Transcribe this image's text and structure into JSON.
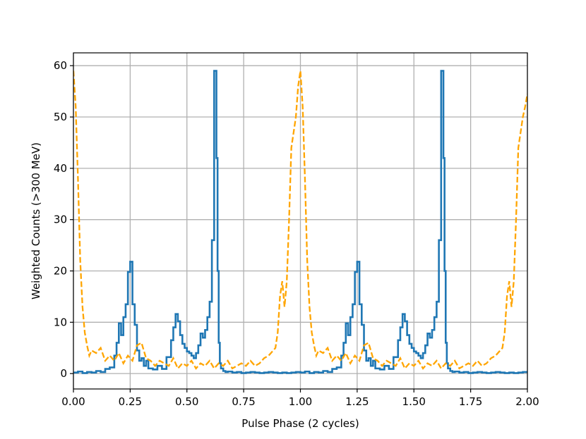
{
  "chart_data": {
    "type": "line",
    "title": "",
    "xlabel": "Pulse Phase (2 cycles)",
    "ylabel": "Weighted Counts (>300 MeV)",
    "xlim": [
      0.0,
      2.0
    ],
    "ylim": [
      -3.0,
      62.5
    ],
    "grid": true,
    "x_ticks": [
      0.0,
      0.25,
      0.5,
      0.75,
      1.0,
      1.25,
      1.5,
      1.75,
      2.0
    ],
    "x_tick_labels": [
      "0.00",
      "0.25",
      "0.50",
      "0.75",
      "1.00",
      "1.25",
      "1.50",
      "1.75",
      "2.00"
    ],
    "y_ticks": [
      0,
      10,
      20,
      30,
      40,
      50,
      60
    ],
    "y_tick_labels": [
      "0",
      "10",
      "20",
      "30",
      "40",
      "50",
      "60"
    ],
    "series": [
      {
        "style": "steps",
        "color": "#1f77b4",
        "x": [
          0.0,
          0.02,
          0.04,
          0.06,
          0.08,
          0.1,
          0.12,
          0.14,
          0.16,
          0.18,
          0.19,
          0.2,
          0.21,
          0.22,
          0.23,
          0.24,
          0.25,
          0.26,
          0.27,
          0.28,
          0.29,
          0.3,
          0.31,
          0.32,
          0.33,
          0.35,
          0.37,
          0.39,
          0.41,
          0.43,
          0.44,
          0.45,
          0.46,
          0.47,
          0.48,
          0.49,
          0.5,
          0.51,
          0.52,
          0.53,
          0.54,
          0.55,
          0.56,
          0.57,
          0.58,
          0.59,
          0.6,
          0.61,
          0.62,
          0.63,
          0.635,
          0.64,
          0.645,
          0.65,
          0.66,
          0.67,
          0.68,
          0.7,
          0.72,
          0.74,
          0.76,
          0.78,
          0.8,
          0.82,
          0.84,
          0.86,
          0.88,
          0.9,
          0.92,
          0.94,
          0.96,
          0.98,
          1.0,
          1.02,
          1.04,
          1.06,
          1.08,
          1.1,
          1.12,
          1.14,
          1.16,
          1.18,
          1.19,
          1.2,
          1.21,
          1.22,
          1.23,
          1.24,
          1.25,
          1.26,
          1.27,
          1.28,
          1.29,
          1.3,
          1.31,
          1.32,
          1.33,
          1.35,
          1.37,
          1.39,
          1.41,
          1.43,
          1.44,
          1.45,
          1.46,
          1.47,
          1.48,
          1.49,
          1.5,
          1.51,
          1.52,
          1.53,
          1.54,
          1.55,
          1.56,
          1.57,
          1.58,
          1.59,
          1.6,
          1.61,
          1.62,
          1.63,
          1.635,
          1.64,
          1.645,
          1.65,
          1.66,
          1.67,
          1.68,
          1.7,
          1.72,
          1.74,
          1.76,
          1.78,
          1.8,
          1.82,
          1.84,
          1.86,
          1.88,
          1.9,
          1.92,
          1.94,
          1.96,
          1.98,
          2.0
        ],
        "y": [
          0.2,
          0.4,
          0.1,
          0.3,
          0.2,
          0.5,
          0.3,
          0.9,
          1.2,
          3.5,
          6.0,
          9.8,
          7.5,
          11.0,
          13.5,
          19.8,
          21.8,
          13.5,
          9.5,
          4.5,
          2.5,
          3.0,
          1.5,
          2.5,
          1.0,
          0.8,
          1.5,
          0.9,
          3.2,
          6.5,
          9.0,
          11.6,
          10.2,
          7.5,
          5.8,
          5.0,
          4.3,
          4.0,
          3.5,
          3.0,
          4.0,
          5.5,
          7.8,
          7.0,
          8.5,
          11.0,
          14.0,
          26.0,
          59.0,
          42.0,
          20.0,
          6.0,
          2.0,
          1.0,
          0.5,
          0.3,
          0.4,
          0.2,
          0.3,
          0.1,
          0.2,
          0.3,
          0.2,
          0.1,
          0.2,
          0.3,
          0.2,
          0.1,
          0.2,
          0.1,
          0.2,
          0.3,
          0.2,
          0.4,
          0.1,
          0.3,
          0.2,
          0.5,
          0.3,
          0.9,
          1.2,
          3.5,
          6.0,
          9.8,
          7.5,
          11.0,
          13.5,
          19.8,
          21.8,
          13.5,
          9.5,
          4.5,
          2.5,
          3.0,
          1.5,
          2.5,
          1.0,
          0.8,
          1.5,
          0.9,
          3.2,
          6.5,
          9.0,
          11.6,
          10.2,
          7.5,
          5.8,
          5.0,
          4.3,
          4.0,
          3.5,
          3.0,
          4.0,
          5.5,
          7.8,
          7.0,
          8.5,
          11.0,
          14.0,
          26.0,
          59.0,
          42.0,
          20.0,
          6.0,
          2.0,
          1.0,
          0.5,
          0.3,
          0.4,
          0.2,
          0.3,
          0.1,
          0.2,
          0.3,
          0.2,
          0.1,
          0.2,
          0.3,
          0.2,
          0.1,
          0.2,
          0.1,
          0.2,
          0.3,
          0.2
        ]
      },
      {
        "style": "dashed",
        "color": "#ffa500",
        "x": [
          0.0,
          0.01,
          0.02,
          0.03,
          0.04,
          0.05,
          0.06,
          0.07,
          0.08,
          0.1,
          0.12,
          0.14,
          0.16,
          0.18,
          0.2,
          0.22,
          0.24,
          0.26,
          0.28,
          0.3,
          0.32,
          0.34,
          0.36,
          0.38,
          0.4,
          0.42,
          0.44,
          0.46,
          0.48,
          0.5,
          0.52,
          0.54,
          0.56,
          0.58,
          0.6,
          0.62,
          0.64,
          0.66,
          0.68,
          0.7,
          0.72,
          0.74,
          0.76,
          0.78,
          0.8,
          0.82,
          0.84,
          0.86,
          0.88,
          0.89,
          0.9,
          0.91,
          0.92,
          0.93,
          0.94,
          0.95,
          0.96,
          0.97,
          0.98,
          0.99,
          1.0,
          1.01,
          1.02,
          1.03,
          1.04,
          1.05,
          1.06,
          1.07,
          1.08,
          1.1,
          1.12,
          1.14,
          1.16,
          1.18,
          1.2,
          1.22,
          1.24,
          1.26,
          1.28,
          1.3,
          1.32,
          1.34,
          1.36,
          1.38,
          1.4,
          1.42,
          1.44,
          1.46,
          1.48,
          1.5,
          1.52,
          1.54,
          1.56,
          1.58,
          1.6,
          1.62,
          1.64,
          1.66,
          1.68,
          1.7,
          1.72,
          1.74,
          1.76,
          1.78,
          1.8,
          1.82,
          1.84,
          1.86,
          1.88,
          1.89,
          1.9,
          1.91,
          1.92,
          1.93,
          1.94,
          1.95,
          1.96,
          1.97,
          1.98,
          1.99,
          2.0
        ],
        "y": [
          59.0,
          52.0,
          38.0,
          22.0,
          13.0,
          8.0,
          5.5,
          3.5,
          4.5,
          4.0,
          5.0,
          2.5,
          3.5,
          2.5,
          4.0,
          2.0,
          3.5,
          2.5,
          5.5,
          6.0,
          3.0,
          2.5,
          1.5,
          2.5,
          2.0,
          1.5,
          3.0,
          1.0,
          2.0,
          1.5,
          2.5,
          1.0,
          2.0,
          1.5,
          2.5,
          1.0,
          2.0,
          1.5,
          2.5,
          1.0,
          1.5,
          2.0,
          1.5,
          2.5,
          1.5,
          2.0,
          3.0,
          3.5,
          4.5,
          5.0,
          8.0,
          15.0,
          18.0,
          13.0,
          18.0,
          30.0,
          44.0,
          47.0,
          50.0,
          56.0,
          59.0,
          52.0,
          38.0,
          22.0,
          13.0,
          8.0,
          5.5,
          3.5,
          4.5,
          4.0,
          5.0,
          2.5,
          3.5,
          2.5,
          4.0,
          2.0,
          3.5,
          2.5,
          5.5,
          6.0,
          3.0,
          2.5,
          1.5,
          2.5,
          2.0,
          1.5,
          3.0,
          1.0,
          2.0,
          1.5,
          2.5,
          1.0,
          2.0,
          1.5,
          2.5,
          1.0,
          2.0,
          1.5,
          2.5,
          1.0,
          1.5,
          2.0,
          1.5,
          2.5,
          1.5,
          2.0,
          3.0,
          3.5,
          4.5,
          5.0,
          8.0,
          15.0,
          18.0,
          13.0,
          18.0,
          30.0,
          44.0,
          47.0,
          50.0,
          52.0,
          54.5
        ]
      }
    ]
  }
}
